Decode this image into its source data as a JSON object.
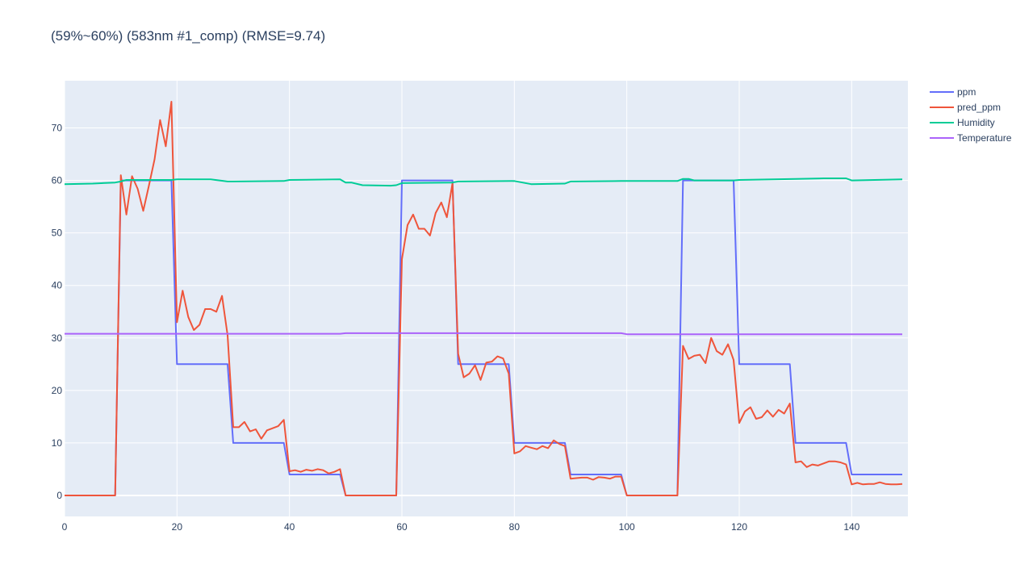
{
  "chart_data": {
    "type": "line",
    "title": "(59%~60%) (583nm #1_comp) (RMSE=9.74)",
    "xlabel": "",
    "ylabel": "",
    "xlim": [
      0,
      150
    ],
    "ylim": [
      -4,
      79
    ],
    "x_ticks": [
      0,
      20,
      40,
      60,
      80,
      100,
      120,
      140
    ],
    "y_ticks": [
      0,
      10,
      20,
      30,
      40,
      50,
      60,
      70
    ],
    "grid": true,
    "legend_position": "top-right",
    "colors": {
      "plot_bg": "#e5ecf6",
      "grid": "#ffffff",
      "text": "#2a3f5f"
    },
    "series": [
      {
        "name": "ppm",
        "color": "#636efa",
        "points": [
          [
            0,
            0
          ],
          [
            9,
            0
          ],
          [
            10,
            60
          ],
          [
            19,
            60
          ],
          [
            20,
            25
          ],
          [
            29,
            25
          ],
          [
            30,
            10
          ],
          [
            39,
            10
          ],
          [
            40,
            4
          ],
          [
            49,
            4
          ],
          [
            50,
            0
          ],
          [
            59,
            0
          ],
          [
            60,
            60
          ],
          [
            69,
            60
          ],
          [
            70,
            25
          ],
          [
            79,
            25
          ],
          [
            80,
            10
          ],
          [
            89,
            10
          ],
          [
            90,
            4
          ],
          [
            99,
            4
          ],
          [
            100,
            0
          ],
          [
            109,
            0
          ],
          [
            110,
            60
          ],
          [
            119,
            60
          ],
          [
            120,
            25
          ],
          [
            129,
            25
          ],
          [
            130,
            10
          ],
          [
            139,
            10
          ],
          [
            140,
            4
          ],
          [
            149,
            4
          ]
        ]
      },
      {
        "name": "pred_ppm",
        "color": "#ef553b",
        "points": [
          [
            0,
            0
          ],
          [
            9,
            0
          ],
          [
            10,
            61
          ],
          [
            11,
            53.5
          ],
          [
            12,
            60.8
          ],
          [
            13,
            58.4
          ],
          [
            14,
            54.2
          ],
          [
            15,
            59
          ],
          [
            16,
            64
          ],
          [
            17,
            71.5
          ],
          [
            18,
            66.5
          ],
          [
            19,
            75
          ],
          [
            20,
            33
          ],
          [
            21,
            39
          ],
          [
            22,
            34
          ],
          [
            23,
            31.5
          ],
          [
            24,
            32.5
          ],
          [
            25,
            35.5
          ],
          [
            26,
            35.5
          ],
          [
            27,
            35
          ],
          [
            28,
            38
          ],
          [
            29,
            30.5
          ],
          [
            30,
            13
          ],
          [
            31,
            13
          ],
          [
            32,
            14
          ],
          [
            33,
            12.2
          ],
          [
            34,
            12.6
          ],
          [
            35,
            10.8
          ],
          [
            36,
            12.4
          ],
          [
            37,
            12.8
          ],
          [
            38,
            13.2
          ],
          [
            39,
            14.4
          ],
          [
            40,
            4.6
          ],
          [
            41,
            4.8
          ],
          [
            42,
            4.5
          ],
          [
            43,
            4.9
          ],
          [
            44,
            4.7
          ],
          [
            45,
            5
          ],
          [
            46,
            4.8
          ],
          [
            47,
            4.2
          ],
          [
            48,
            4.5
          ],
          [
            49,
            5
          ],
          [
            50,
            0
          ],
          [
            59,
            0
          ],
          [
            60,
            45
          ],
          [
            61,
            51.5
          ],
          [
            62,
            53.5
          ],
          [
            63,
            50.8
          ],
          [
            64,
            50.8
          ],
          [
            65,
            49.5
          ],
          [
            66,
            53.8
          ],
          [
            67,
            55.8
          ],
          [
            68,
            53
          ],
          [
            69,
            59.5
          ],
          [
            70,
            27
          ],
          [
            71,
            22.5
          ],
          [
            72,
            23.2
          ],
          [
            73,
            24.8
          ],
          [
            74,
            22
          ],
          [
            75,
            25.3
          ],
          [
            76,
            25.5
          ],
          [
            77,
            26.5
          ],
          [
            78,
            26.1
          ],
          [
            79,
            23.2
          ],
          [
            80,
            8
          ],
          [
            81,
            8.4
          ],
          [
            82,
            9.4
          ],
          [
            83,
            9.1
          ],
          [
            84,
            8.8
          ],
          [
            85,
            9.4
          ],
          [
            86,
            9
          ],
          [
            87,
            10.5
          ],
          [
            88,
            9.8
          ],
          [
            89,
            9.4
          ],
          [
            90,
            3.2
          ],
          [
            91,
            3.3
          ],
          [
            92,
            3.4
          ],
          [
            93,
            3.4
          ],
          [
            94,
            3
          ],
          [
            95,
            3.5
          ],
          [
            96,
            3.4
          ],
          [
            97,
            3.2
          ],
          [
            98,
            3.6
          ],
          [
            99,
            3.6
          ],
          [
            100,
            0
          ],
          [
            109,
            0
          ],
          [
            110,
            28.5
          ],
          [
            111,
            26
          ],
          [
            112,
            26.6
          ],
          [
            113,
            26.8
          ],
          [
            114,
            25.2
          ],
          [
            115,
            30
          ],
          [
            116,
            27.5
          ],
          [
            117,
            26.8
          ],
          [
            118,
            28.8
          ],
          [
            119,
            25.8
          ],
          [
            120,
            13.8
          ],
          [
            121,
            16
          ],
          [
            122,
            16.8
          ],
          [
            123,
            14.6
          ],
          [
            124,
            14.9
          ],
          [
            125,
            16.2
          ],
          [
            126,
            15
          ],
          [
            127,
            16.3
          ],
          [
            128,
            15.6
          ],
          [
            129,
            17.5
          ],
          [
            130,
            6.3
          ],
          [
            131,
            6.5
          ],
          [
            132,
            5.4
          ],
          [
            133,
            5.9
          ],
          [
            134,
            5.7
          ],
          [
            135,
            6.1
          ],
          [
            136,
            6.5
          ],
          [
            137,
            6.5
          ],
          [
            138,
            6.3
          ],
          [
            139,
            5.9
          ],
          [
            140,
            2.1
          ],
          [
            141,
            2.4
          ],
          [
            142,
            2.1
          ],
          [
            143,
            2.2
          ],
          [
            144,
            2.2
          ],
          [
            145,
            2.5
          ],
          [
            146,
            2.2
          ],
          [
            147,
            2.1
          ],
          [
            148,
            2.1
          ],
          [
            149,
            2.2
          ]
        ]
      },
      {
        "name": "Humidity",
        "color": "#00cc96",
        "points": [
          [
            0,
            59.3
          ],
          [
            5,
            59.4
          ],
          [
            9,
            59.6
          ],
          [
            10,
            59.8
          ],
          [
            11,
            60.1
          ],
          [
            19,
            60.1
          ],
          [
            20,
            60.2
          ],
          [
            26,
            60.2
          ],
          [
            29,
            59.8
          ],
          [
            30,
            59.8
          ],
          [
            39,
            59.9
          ],
          [
            40,
            60.1
          ],
          [
            49,
            60.2
          ],
          [
            50,
            59.6
          ],
          [
            51,
            59.6
          ],
          [
            53,
            59.1
          ],
          [
            58,
            59
          ],
          [
            59,
            59.1
          ],
          [
            60,
            59.5
          ],
          [
            69,
            59.6
          ],
          [
            70,
            59.8
          ],
          [
            80,
            59.9
          ],
          [
            83,
            59.3
          ],
          [
            89,
            59.4
          ],
          [
            90,
            59.8
          ],
          [
            99,
            59.9
          ],
          [
            109,
            59.9
          ],
          [
            110,
            60.3
          ],
          [
            111,
            60.3
          ],
          [
            112,
            60
          ],
          [
            119,
            60
          ],
          [
            120,
            60.1
          ],
          [
            130,
            60.3
          ],
          [
            135,
            60.4
          ],
          [
            139,
            60.4
          ],
          [
            140,
            60
          ],
          [
            149,
            60.2
          ]
        ]
      },
      {
        "name": "Temperature",
        "color": "#ab63fa",
        "points": [
          [
            0,
            30.8
          ],
          [
            49,
            30.8
          ],
          [
            50,
            30.9
          ],
          [
            69,
            30.9
          ],
          [
            70,
            30.9
          ],
          [
            99,
            30.9
          ],
          [
            100,
            30.7
          ],
          [
            149,
            30.7
          ]
        ]
      }
    ]
  }
}
